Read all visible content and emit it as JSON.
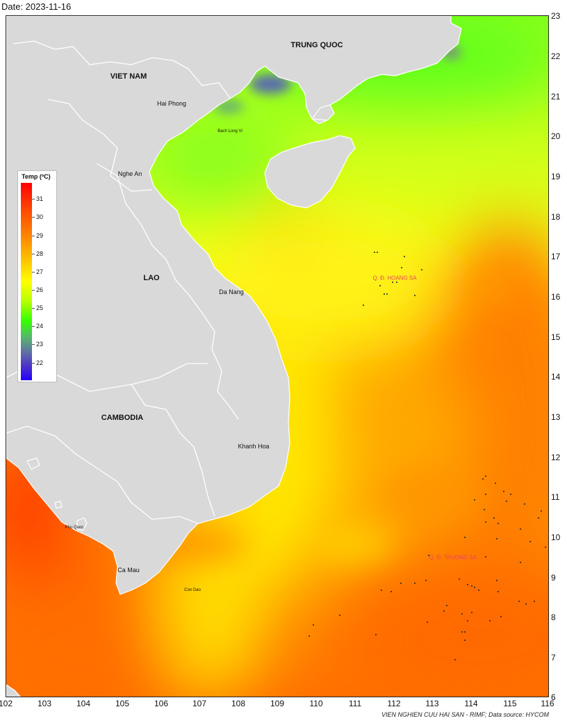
{
  "header": {
    "date_text": "Date: 2023-11-16"
  },
  "axes": {
    "x_ticks": [
      "102",
      "103",
      "104",
      "105",
      "106",
      "107",
      "108",
      "109",
      "110",
      "111",
      "112",
      "113",
      "114",
      "115",
      "116"
    ],
    "y_ticks": [
      "23",
      "22",
      "21",
      "20",
      "19",
      "18",
      "17",
      "16",
      "15",
      "14",
      "13",
      "12",
      "11",
      "10",
      "9",
      "8",
      "7",
      "6"
    ]
  },
  "legend": {
    "title": "Temp (ºC)",
    "ticks": [
      "31",
      "30",
      "29",
      "28",
      "27",
      "26",
      "25",
      "24",
      "23",
      "22"
    ],
    "colors": {
      "max": "#ff0000",
      "mid": "#ffff00",
      "low": "#33ff00",
      "min": "#2200ff"
    }
  },
  "labels": {
    "countries": {
      "china": "TRUNG QUOC",
      "vietnam": "VIET NAM",
      "laos": "LAO",
      "cambodia": "CAMBODIA"
    },
    "places": {
      "hai_phong": "Hai Phong",
      "bach_long_vi": "Bach Long Vi",
      "nghe_an": "Nghe An",
      "da_nang": "Da Nang",
      "khanh_hoa": "Khanh Hoa",
      "phu_quoc": "Phu Quoc",
      "ca_mau": "Ca Mau",
      "con_dao": "Con Dao"
    },
    "archipelagos": {
      "hoang_sa": "Q. Đ. HOANG SA",
      "truong_sa": "Q. Đ. TRUONG SA"
    }
  },
  "credit": "VIEN NGHIEN CUU HAI SAN - RIMF; Data source: HYCOM",
  "map_colors": {
    "land": "#d9d9d9",
    "border": "#ffffff",
    "sea_warm": "#ff7a00",
    "sea_mid": "#ffd200",
    "sea_cool": "#8cff1a"
  }
}
